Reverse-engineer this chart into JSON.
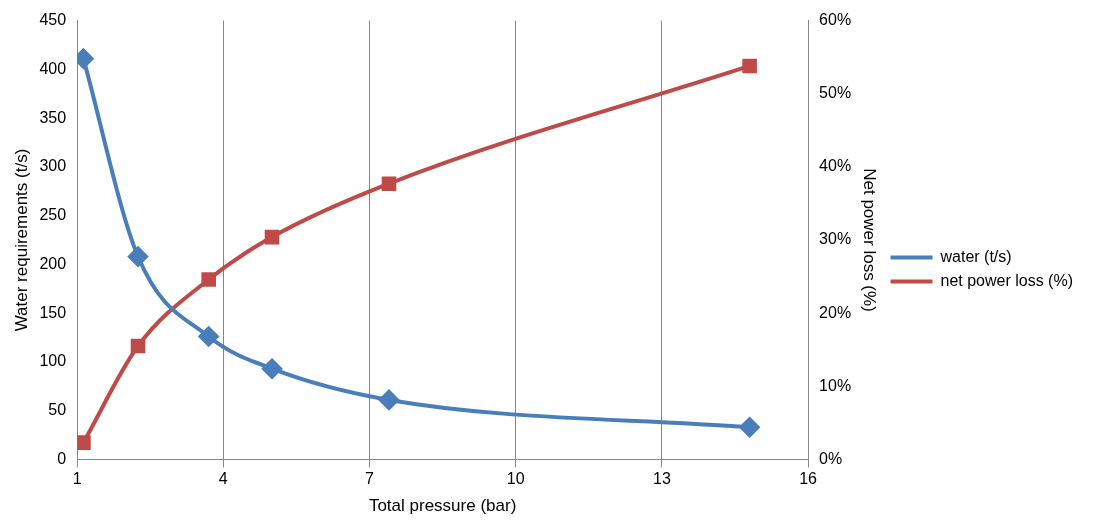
{
  "chart_data": {
    "type": "line",
    "xlabel": "Total pressure (bar)",
    "ylabel": "Water requirements (t/s)",
    "y2label": "Net power loss (%)",
    "x": [
      1.13,
      2.25,
      3.7,
      5.0,
      7.4,
      14.8
    ],
    "xlim": [
      1,
      16
    ],
    "xticks": [
      1,
      4,
      7,
      10,
      13,
      16
    ],
    "ylim": [
      0,
      450
    ],
    "yticks": [
      0,
      50,
      100,
      150,
      200,
      250,
      300,
      350,
      400,
      450
    ],
    "y2lim": [
      0,
      60
    ],
    "y2ticks": [
      {
        "value": 0,
        "label": "0%"
      },
      {
        "value": 10,
        "label": "10%"
      },
      {
        "value": 20,
        "label": "20%"
      },
      {
        "value": 30,
        "label": "30%"
      },
      {
        "value": 40,
        "label": "40%"
      },
      {
        "value": 50,
        "label": "50%"
      },
      {
        "value": 60,
        "label": "60%"
      }
    ],
    "series": [
      {
        "name": "water (t/s)",
        "color": "#4a7ebb",
        "marker": "diamond",
        "values": [
          411,
          208,
          126,
          93,
          61,
          33
        ]
      },
      {
        "name": "net power loss (%)",
        "color": "#be4b48",
        "marker": "square",
        "axis": "y2",
        "values": [
          2.3,
          15.5,
          24.6,
          30.4,
          37.7,
          53.8
        ]
      }
    ],
    "grid": "x",
    "legend": "right",
    "line_style": "solid"
  }
}
